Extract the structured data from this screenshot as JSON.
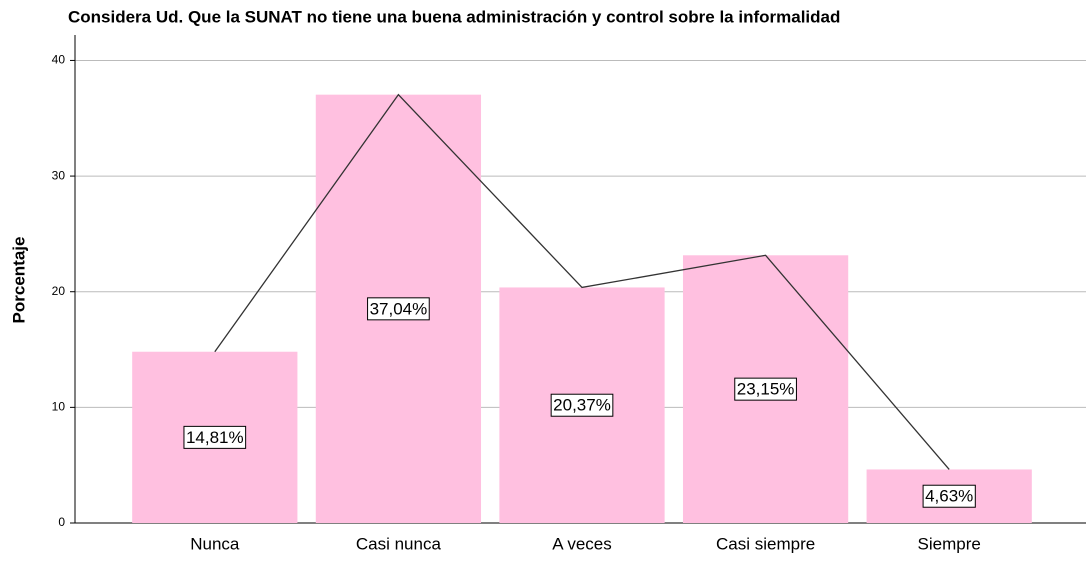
{
  "chart_data": {
    "type": "bar",
    "title": "Considera Ud. Que la SUNAT no tiene una buena administración y control sobre la informalidad",
    "y_label": "Porcentaje",
    "categories": [
      "Nunca",
      "Casi nunca",
      "A veces",
      "Casi siempre",
      "Siempre"
    ],
    "values": [
      14.81,
      37.04,
      20.37,
      23.15,
      4.63
    ],
    "value_labels": [
      "14,81%",
      "37,04%",
      "20,37%",
      "23,15%",
      "4,63%"
    ],
    "color": "#ffc0e0",
    "line_overlay": true,
    "line_color": "#333333",
    "ylim": [
      0,
      42.2
    ],
    "yticks": [
      0,
      10,
      20,
      30,
      40
    ],
    "grid": true
  }
}
